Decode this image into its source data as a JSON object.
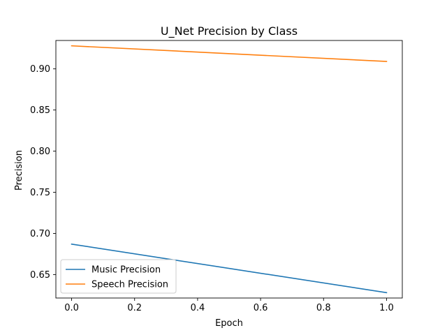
{
  "chart_data": {
    "type": "line",
    "title": "U_Net Precision by Class",
    "xlabel": "Epoch",
    "ylabel": "Precision",
    "xlim": [
      -0.05,
      1.05
    ],
    "ylim": [
      0.6215,
      0.9345
    ],
    "xticks": [
      0.0,
      0.2,
      0.4,
      0.6,
      0.8,
      1.0
    ],
    "xtick_labels": [
      "0.0",
      "0.2",
      "0.4",
      "0.6",
      "0.8",
      "1.0"
    ],
    "yticks": [
      0.65,
      0.7,
      0.75,
      0.8,
      0.85,
      0.9
    ],
    "ytick_labels": [
      "0.65",
      "0.70",
      "0.75",
      "0.80",
      "0.85",
      "0.90"
    ],
    "grid": false,
    "legend_position": "lower-left",
    "series": [
      {
        "name": "Music Precision",
        "color": "#1f77b4",
        "x": [
          0,
          1
        ],
        "y": [
          0.687,
          0.628
        ]
      },
      {
        "name": "Speech Precision",
        "color": "#ff7f0e",
        "x": [
          0,
          1
        ],
        "y": [
          0.928,
          0.909
        ]
      }
    ]
  }
}
